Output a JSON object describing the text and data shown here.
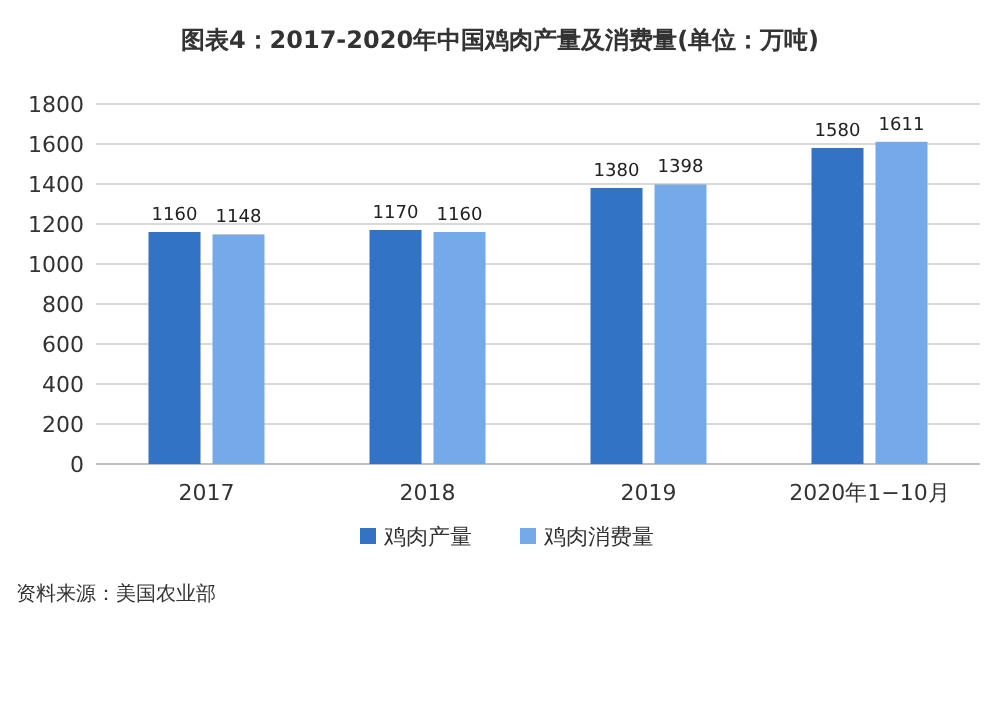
{
  "chart_data": {
    "type": "bar",
    "title": "图表4：2017-2020年中国鸡肉产量及消费量(单位：万吨)",
    "categories": [
      "2017",
      "2018",
      "2019",
      "2020年1−10月"
    ],
    "series": [
      {
        "name": "鸡肉产量",
        "color": "#3273c6",
        "values": [
          1160,
          1170,
          1380,
          1580
        ]
      },
      {
        "name": "鸡肉消费量",
        "color": "#75aaea",
        "values": [
          1148,
          1160,
          1398,
          1611
        ]
      }
    ],
    "ylim": [
      0,
      1800
    ],
    "yticks": [
      0,
      200,
      400,
      600,
      800,
      1000,
      1200,
      1400,
      1600,
      1800
    ],
    "grid": "y",
    "data_labels": true,
    "legend": "bottom",
    "annotations": [
      "资料来源：美国农业部"
    ]
  }
}
